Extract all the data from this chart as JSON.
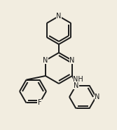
{
  "bg_color": "#f2ede0",
  "bond_color": "#1a1a1a",
  "atom_bg": "#f2ede0",
  "bond_lw": 1.4,
  "font_size": 7.0,
  "font_color": "#1a1a1a"
}
